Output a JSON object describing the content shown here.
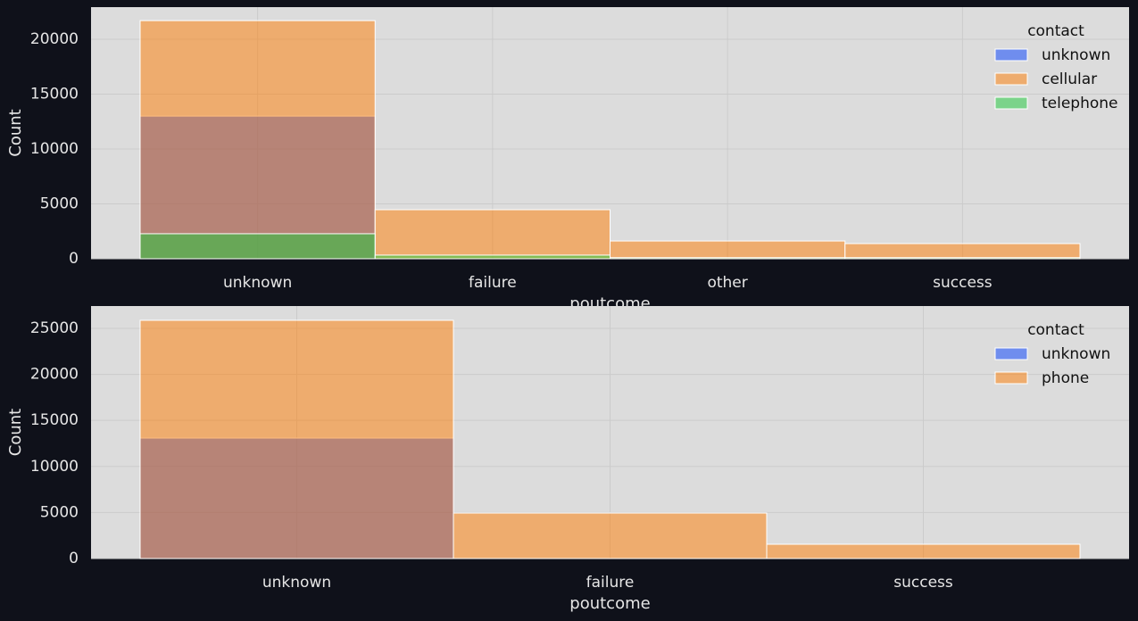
{
  "chart_data": [
    {
      "type": "bar",
      "layout": "layered",
      "x_label": "poutcome",
      "y_label": "Count",
      "legend_title": "contact",
      "legend": "upper right",
      "grid": true,
      "categories": [
        "unknown",
        "failure",
        "other",
        "success"
      ],
      "series": [
        {
          "name": "unknown",
          "color": "#023eff",
          "values": [
            13000,
            0,
            0,
            0
          ]
        },
        {
          "name": "cellular",
          "color": "#ff7c00",
          "values": [
            21700,
            4470,
            1620,
            1380
          ]
        },
        {
          "name": "telephone",
          "color": "#1ac938",
          "values": [
            2280,
            330,
            100,
            100
          ]
        }
      ],
      "ylim": [
        0,
        22930
      ],
      "yticks": [
        0,
        5000,
        10000,
        15000,
        20000
      ]
    },
    {
      "type": "bar",
      "layout": "layered",
      "x_label": "poutcome",
      "y_label": "Count",
      "legend_title": "contact",
      "legend": "upper right",
      "grid": true,
      "categories": [
        "unknown",
        "failure",
        "success"
      ],
      "series": [
        {
          "name": "unknown",
          "color": "#023eff",
          "values": [
            13080,
            0,
            0
          ]
        },
        {
          "name": "phone",
          "color": "#ff7c00",
          "values": [
            25870,
            4940,
            1550
          ]
        }
      ],
      "ylim": [
        0,
        27420
      ],
      "yticks": [
        0,
        5000,
        10000,
        15000,
        20000,
        25000
      ]
    }
  ]
}
